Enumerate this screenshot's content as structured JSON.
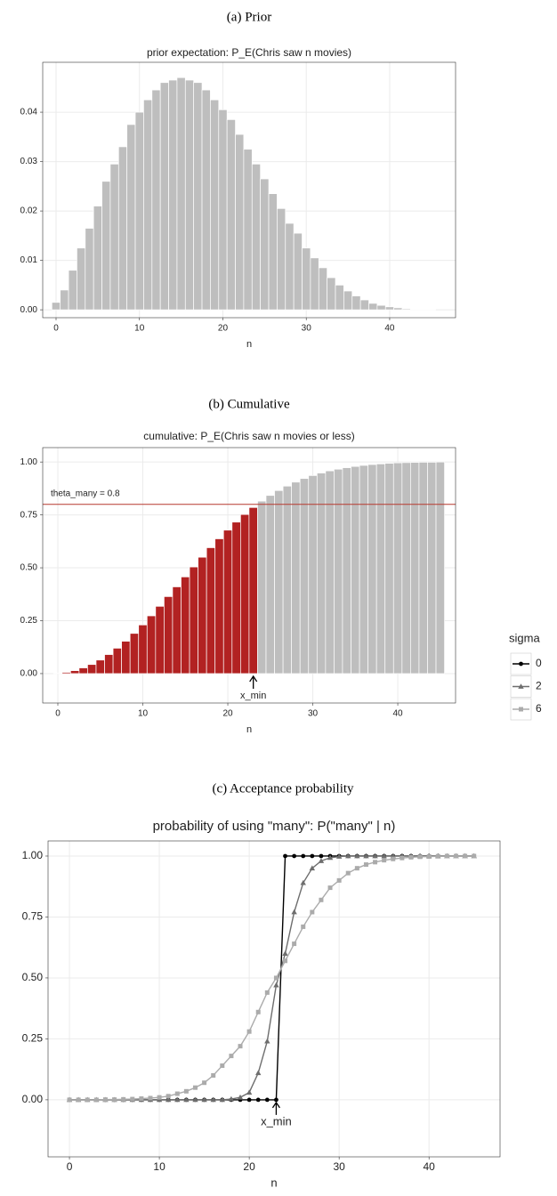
{
  "chart_data": [
    {
      "type": "bar",
      "caption": "(a) Prior",
      "title": "prior expectation: P_E(Chris saw n movies)",
      "x_label": "n",
      "x": [
        0,
        1,
        2,
        3,
        4,
        5,
        6,
        7,
        8,
        9,
        10,
        11,
        12,
        13,
        14,
        15,
        16,
        17,
        18,
        19,
        20,
        21,
        22,
        23,
        24,
        25,
        26,
        27,
        28,
        29,
        30,
        31,
        32,
        33,
        34,
        35,
        36,
        37,
        38,
        39,
        40,
        41,
        42,
        43,
        44,
        45
      ],
      "values": [
        0.0015,
        0.004,
        0.008,
        0.0125,
        0.0165,
        0.021,
        0.026,
        0.0295,
        0.033,
        0.0375,
        0.04,
        0.0425,
        0.0445,
        0.046,
        0.0465,
        0.047,
        0.0465,
        0.046,
        0.0445,
        0.0425,
        0.0405,
        0.0385,
        0.0355,
        0.0325,
        0.0295,
        0.0265,
        0.0235,
        0.0205,
        0.0175,
        0.0155,
        0.0125,
        0.0105,
        0.0085,
        0.0065,
        0.005,
        0.0038,
        0.0028,
        0.002,
        0.0013,
        0.0009,
        0.0006,
        0.0004,
        0.0002,
        0.0001,
        0.0001,
        5e-05
      ],
      "color": "#bebebe",
      "xlim": [
        -1.6,
        47.9
      ],
      "ylim": [
        -0.0016,
        0.0501
      ],
      "xticks": [
        0,
        10,
        20,
        30,
        40
      ],
      "yticks": [
        {
          "value": 0,
          "label": "0.00"
        },
        {
          "value": 0.01,
          "label": "0.01"
        },
        {
          "value": 0.02,
          "label": "0.02"
        },
        {
          "value": 0.03,
          "label": "0.03"
        },
        {
          "value": 0.04,
          "label": "0.04"
        }
      ],
      "grid": true
    },
    {
      "type": "bar",
      "caption": "(b) Cumulative",
      "title": "cumulative: P_E(Chris saw n movies or less)",
      "x_label": "n",
      "x": [
        0,
        1,
        2,
        3,
        4,
        5,
        6,
        7,
        8,
        9,
        10,
        11,
        12,
        13,
        14,
        15,
        16,
        17,
        18,
        19,
        20,
        21,
        22,
        23,
        24,
        25,
        26,
        27,
        28,
        29,
        30,
        31,
        32,
        33,
        34,
        35,
        36,
        37,
        38,
        39,
        40,
        41,
        42,
        43,
        44,
        45
      ],
      "values": [
        0.002,
        0.006,
        0.014,
        0.027,
        0.043,
        0.064,
        0.09,
        0.12,
        0.153,
        0.19,
        0.23,
        0.273,
        0.318,
        0.364,
        0.41,
        0.457,
        0.504,
        0.55,
        0.595,
        0.637,
        0.678,
        0.716,
        0.752,
        0.785,
        0.815,
        0.842,
        0.865,
        0.886,
        0.905,
        0.922,
        0.936,
        0.948,
        0.958,
        0.966,
        0.973,
        0.979,
        0.984,
        0.988,
        0.991,
        0.994,
        0.996,
        0.997,
        0.998,
        0.999,
        0.999,
        1.0
      ],
      "color": "#bebebe",
      "highlight_color": "#b22222",
      "reference_line": {
        "label": "theta_many = 0.8",
        "value": 0.8,
        "color": "#b5382f"
      },
      "annotation": {
        "text": "x_min",
        "x": 23,
        "y": 0
      },
      "xlim": [
        -1.78,
        46.8
      ],
      "ylim": [
        -0.139,
        1.068
      ],
      "xticks": [
        0,
        10,
        20,
        30,
        40
      ],
      "yticks": [
        {
          "value": 0,
          "label": "0.00"
        },
        {
          "value": 0.25,
          "label": "0.25"
        },
        {
          "value": 0.5,
          "label": "0.50"
        },
        {
          "value": 0.75,
          "label": "0.75"
        },
        {
          "value": 1,
          "label": "1.00"
        }
      ],
      "grid": true
    },
    {
      "type": "line",
      "caption": "(c) Acceptance probability",
      "title": "probability of using \"many\": P(\"many\" | n)",
      "x_label": "n",
      "x": [
        0,
        1,
        2,
        3,
        4,
        5,
        6,
        7,
        8,
        9,
        10,
        11,
        12,
        13,
        14,
        15,
        16,
        17,
        18,
        19,
        20,
        21,
        22,
        23,
        24,
        25,
        26,
        27,
        28,
        29,
        30,
        31,
        32,
        33,
        34,
        35,
        36,
        37,
        38,
        39,
        40,
        41,
        42,
        43,
        44,
        45
      ],
      "series": [
        {
          "name": "0",
          "color": "#000000",
          "marker": "circle",
          "values": [
            0,
            0,
            0,
            0,
            0,
            0,
            0,
            0,
            0,
            0,
            0,
            0,
            0,
            0,
            0,
            0,
            0,
            0,
            0,
            0,
            0,
            0,
            0,
            0,
            1,
            1,
            1,
            1,
            1,
            1,
            1,
            1,
            1,
            1,
            1,
            1,
            1,
            1,
            1,
            1,
            1,
            1,
            1,
            1,
            1,
            1
          ]
        },
        {
          "name": "2",
          "color": "#6e6e6e",
          "marker": "triangle",
          "values": [
            0,
            0,
            0,
            0,
            0,
            0,
            0,
            0,
            0,
            0,
            0,
            0,
            0,
            0,
            0,
            0,
            0,
            0,
            0.003,
            0.01,
            0.03,
            0.11,
            0.24,
            0.47,
            0.6,
            0.77,
            0.89,
            0.95,
            0.98,
            0.993,
            0.998,
            1,
            1,
            1,
            1,
            1,
            1,
            1,
            1,
            1,
            1,
            1,
            1,
            1,
            1,
            1
          ]
        },
        {
          "name": "6",
          "color": "#ababab",
          "marker": "square",
          "values": [
            0,
            0,
            0,
            0,
            0.001,
            0.001,
            0.002,
            0.003,
            0.005,
            0.007,
            0.01,
            0.015,
            0.025,
            0.035,
            0.05,
            0.07,
            0.1,
            0.14,
            0.18,
            0.22,
            0.28,
            0.36,
            0.44,
            0.5,
            0.57,
            0.64,
            0.71,
            0.77,
            0.82,
            0.87,
            0.9,
            0.93,
            0.95,
            0.965,
            0.975,
            0.983,
            0.988,
            0.992,
            0.995,
            0.997,
            0.998,
            0.999,
            1,
            1,
            1,
            1
          ]
        }
      ],
      "legend_title": "sigma",
      "legend": "right",
      "annotation": {
        "text": "x_min",
        "x": 23,
        "y": 0
      },
      "xlim": [
        -2.38,
        47.9
      ],
      "ylim": [
        -0.234,
        1.062
      ],
      "xticks": [
        0,
        10,
        20,
        30,
        40
      ],
      "yticks": [
        {
          "value": 0,
          "label": "0.00"
        },
        {
          "value": 0.25,
          "label": "0.25"
        },
        {
          "value": 0.5,
          "label": "0.50"
        },
        {
          "value": 0.75,
          "label": "0.75"
        },
        {
          "value": 1,
          "label": "1.00"
        }
      ],
      "grid": true
    }
  ]
}
